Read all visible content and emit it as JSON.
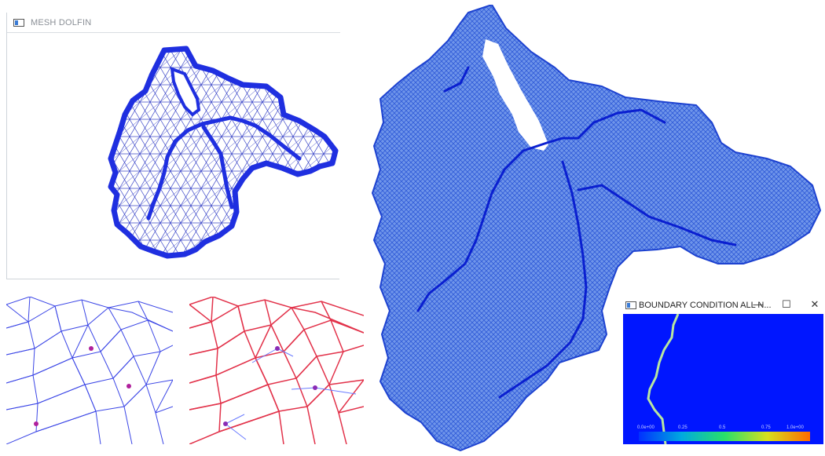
{
  "mesh_window": {
    "title": "MESH DOLFIN",
    "icon": "window-app-icon",
    "mesh_color": "#1f2fe0"
  },
  "zoom_panels": {
    "blue": {
      "line_color": "#3b46e6",
      "node_color": "#b0209c"
    },
    "red": {
      "line_color": "#e2324a",
      "node_color": "#8a2bb5"
    }
  },
  "fine_mesh": {
    "fill_color": "#2f66e0",
    "river_color": "#0a1fd0"
  },
  "bc_window": {
    "title": "BOUNDARY CONDITION ALL N...",
    "icon": "window-app-icon",
    "controls": {
      "minimize": "—",
      "maximize": "☐",
      "close": "✕"
    },
    "background_color": "#0016ff",
    "colorbar_ticks": [
      "0.0e+00",
      "0.25",
      "0.5",
      "0.75",
      "1.0e+00"
    ]
  }
}
